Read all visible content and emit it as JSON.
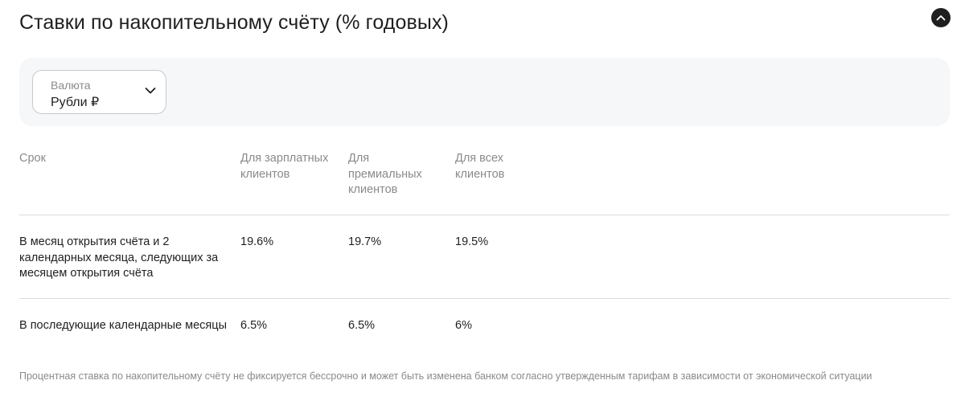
{
  "header": {
    "title": "Ставки по накопительному счёту (% годовых)",
    "collapse_icon": "chevron-up-icon"
  },
  "filter": {
    "currency_label": "Валюта",
    "currency_value": "Рубли ₽",
    "chevron_icon": "chevron-down-icon"
  },
  "table": {
    "columns": [
      "Срок",
      "Для зарплатных клиентов",
      "Для премиальных клиентов",
      "Для всех клиентов"
    ],
    "rows": [
      {
        "term": "В месяц открытия счёта и 2 календарных месяца, следующих за месяцем открытия счёта",
        "salary": "19.6%",
        "premium": "19.7%",
        "all": "19.5%"
      },
      {
        "term": "В последующие календарные месяцы",
        "salary": "6.5%",
        "premium": "6.5%",
        "all": "6%"
      }
    ]
  },
  "footnote": "Процентная ставка по накопительному счёту не фиксируется бессрочно и может быть изменена банком согласно утвержденным тарифам в зависимости от экономической ситуации"
}
